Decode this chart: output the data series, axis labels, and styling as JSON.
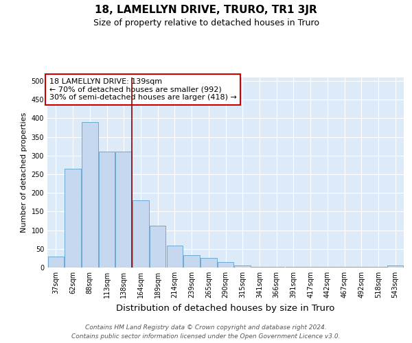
{
  "title": "18, LAMELLYN DRIVE, TRURO, TR1 3JR",
  "subtitle": "Size of property relative to detached houses in Truro",
  "xlabel": "Distribution of detached houses by size in Truro",
  "ylabel": "Number of detached properties",
  "bar_labels": [
    "37sqm",
    "62sqm",
    "88sqm",
    "113sqm",
    "138sqm",
    "164sqm",
    "189sqm",
    "214sqm",
    "239sqm",
    "265sqm",
    "290sqm",
    "315sqm",
    "341sqm",
    "366sqm",
    "391sqm",
    "417sqm",
    "442sqm",
    "467sqm",
    "492sqm",
    "518sqm",
    "543sqm"
  ],
  "bar_values": [
    30,
    265,
    390,
    310,
    310,
    180,
    113,
    58,
    33,
    25,
    15,
    6,
    2,
    2,
    2,
    2,
    2,
    2,
    2,
    2,
    5
  ],
  "bar_color": "#c5d8f0",
  "bar_edge_color": "#6aaad4",
  "vline_x_index": 4,
  "vline_color": "#8b0000",
  "annotation_box_text": "18 LAMELLYN DRIVE: 139sqm\n← 70% of detached houses are smaller (992)\n30% of semi-detached houses are larger (418) →",
  "annotation_box_color": "#ffffff",
  "annotation_box_edge_color": "#cc0000",
  "ylim": [
    0,
    510
  ],
  "yticks": [
    0,
    50,
    100,
    150,
    200,
    250,
    300,
    350,
    400,
    450,
    500
  ],
  "background_color": "#ddeaf8",
  "footer_text": "Contains HM Land Registry data © Crown copyright and database right 2024.\nContains public sector information licensed under the Open Government Licence v3.0.",
  "title_fontsize": 11,
  "subtitle_fontsize": 9,
  "xlabel_fontsize": 9.5,
  "ylabel_fontsize": 8,
  "tick_fontsize": 7,
  "footer_fontsize": 6.5,
  "annotation_fontsize": 8
}
